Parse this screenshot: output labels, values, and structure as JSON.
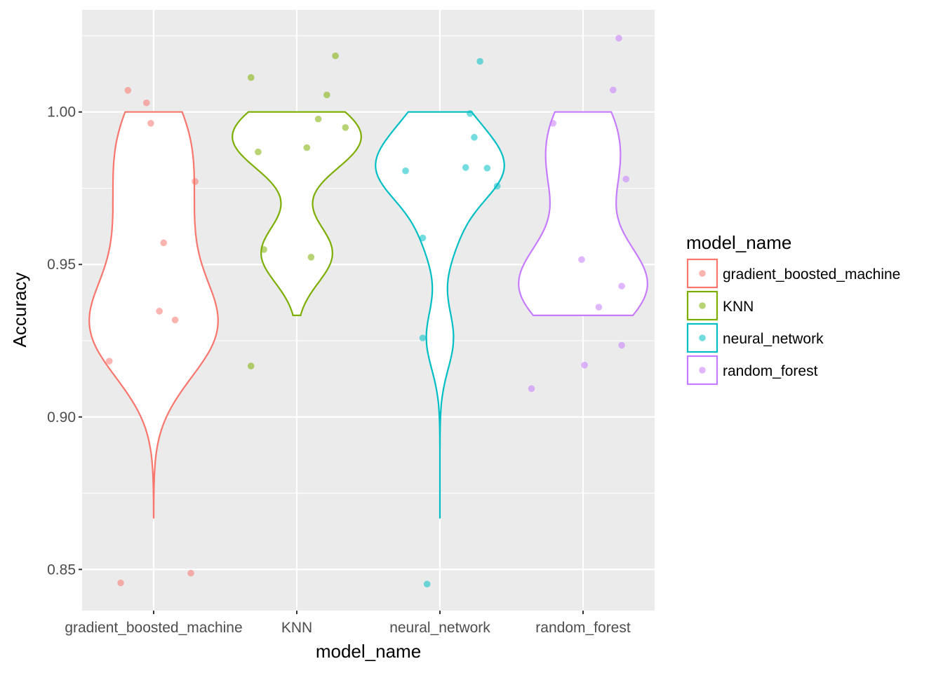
{
  "chart_data": {
    "type": "violin",
    "xlabel": "model_name",
    "ylabel": "Accuracy",
    "categories": [
      "gradient_boosted_machine",
      "KNN",
      "neural_network",
      "random_forest"
    ],
    "ylim": [
      0.8365,
      1.0335
    ],
    "yticks": [
      0.85,
      0.9,
      0.95,
      1.0
    ],
    "ytick_labels": [
      "0.85",
      "0.90",
      "0.95",
      "1.00"
    ],
    "grid": true,
    "legend": {
      "title": "model_name",
      "position": "right",
      "entries": [
        "gradient_boosted_machine",
        "KNN",
        "neural_network",
        "random_forest"
      ]
    },
    "colors": {
      "gradient_boosted_machine": "#F8766D",
      "KNN": "#7CAE00",
      "neural_network": "#00BFC4",
      "random_forest": "#C77CFF"
    },
    "series": [
      {
        "name": "gradient_boosted_machine",
        "violin_range": [
          0.8667,
          1.0
        ],
        "points": [
          {
            "x": 0.82,
            "y": 1.0071
          },
          {
            "x": 0.95,
            "y": 1.003
          },
          {
            "x": 0.98,
            "y": 0.9963
          },
          {
            "x": 1.29,
            "y": 0.9772
          },
          {
            "x": 1.07,
            "y": 0.9571
          },
          {
            "x": 1.04,
            "y": 0.9347
          },
          {
            "x": 1.15,
            "y": 0.9318
          },
          {
            "x": 0.69,
            "y": 0.9183
          },
          {
            "x": 0.77,
            "y": 0.8456
          },
          {
            "x": 1.26,
            "y": 0.8488
          }
        ]
      },
      {
        "name": "KNN",
        "violin_range": [
          0.9333,
          1.0
        ],
        "points": [
          {
            "x": 1.68,
            "y": 1.0113
          },
          {
            "x": 2.27,
            "y": 1.0184
          },
          {
            "x": 2.21,
            "y": 1.0056
          },
          {
            "x": 2.15,
            "y": 0.9977
          },
          {
            "x": 2.34,
            "y": 0.9949
          },
          {
            "x": 1.73,
            "y": 0.9869
          },
          {
            "x": 2.07,
            "y": 0.9883
          },
          {
            "x": 1.77,
            "y": 0.9549
          },
          {
            "x": 2.1,
            "y": 0.9524
          },
          {
            "x": 1.68,
            "y": 0.9167
          }
        ]
      },
      {
        "name": "neural_network",
        "violin_range": [
          0.8667,
          1.0
        ],
        "points": [
          {
            "x": 3.28,
            "y": 1.0166
          },
          {
            "x": 3.21,
            "y": 0.9995
          },
          {
            "x": 3.24,
            "y": 0.9917
          },
          {
            "x": 2.76,
            "y": 0.9807
          },
          {
            "x": 3.18,
            "y": 0.9818
          },
          {
            "x": 3.33,
            "y": 0.9816
          },
          {
            "x": 3.4,
            "y": 0.9757
          },
          {
            "x": 2.88,
            "y": 0.9587
          },
          {
            "x": 2.88,
            "y": 0.9259
          },
          {
            "x": 2.91,
            "y": 0.8452
          }
        ]
      },
      {
        "name": "random_forest",
        "violin_range": [
          0.9333,
          1.0
        ],
        "points": [
          {
            "x": 4.25,
            "y": 1.0242
          },
          {
            "x": 4.21,
            "y": 1.0072
          },
          {
            "x": 3.79,
            "y": 0.9963
          },
          {
            "x": 4.3,
            "y": 0.978
          },
          {
            "x": 3.99,
            "y": 0.9516
          },
          {
            "x": 4.27,
            "y": 0.9429
          },
          {
            "x": 4.11,
            "y": 0.936
          },
          {
            "x": 4.27,
            "y": 0.9235
          },
          {
            "x": 4.01,
            "y": 0.917
          },
          {
            "x": 3.64,
            "y": 0.9093
          }
        ]
      }
    ]
  }
}
